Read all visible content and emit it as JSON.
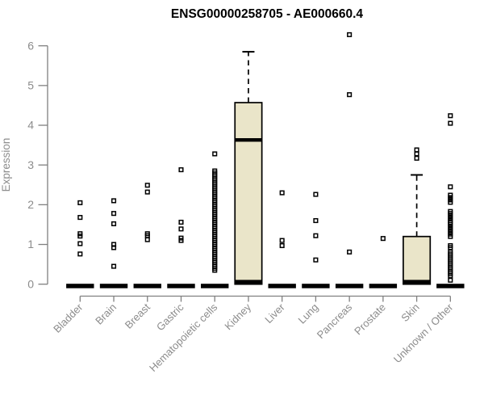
{
  "chart_data": {
    "type": "boxplot",
    "title": "ENSG00000258705 - AE000660.4",
    "ylabel": "Expression",
    "ylim": [
      0,
      6
    ],
    "yticks": [
      "0",
      "1",
      "2",
      "3",
      "4",
      "5",
      "6"
    ],
    "grid": false,
    "legend": false,
    "categories": [
      "Bladder",
      "Brain",
      "Breast",
      "Gastric",
      "Hematopoietic cells",
      "Kidney",
      "Liver",
      "Lung",
      "Pancreas",
      "Prostate",
      "Skin",
      "Unknown / Other"
    ],
    "boxes": [
      {
        "category": "Bladder",
        "q1": 0,
        "median": 0,
        "q3": 0,
        "whisker_low": 0,
        "whisker_high": 0,
        "outliers": [
          2.05,
          1.68,
          1.27,
          1.21,
          1.02,
          0.76
        ]
      },
      {
        "category": "Brain",
        "q1": 0,
        "median": 0,
        "q3": 0,
        "whisker_low": 0,
        "whisker_high": 0,
        "outliers": [
          2.1,
          1.78,
          1.52,
          1.0,
          0.92,
          0.45
        ]
      },
      {
        "category": "Breast",
        "q1": 0,
        "median": 0,
        "q3": 0,
        "whisker_low": 0,
        "whisker_high": 0,
        "outliers": [
          2.49,
          2.32,
          1.27,
          1.22,
          1.12
        ]
      },
      {
        "category": "Gastric",
        "q1": 0,
        "median": 0,
        "q3": 0,
        "whisker_low": 0,
        "whisker_high": 0,
        "outliers": [
          2.88,
          1.56,
          1.39,
          1.16,
          1.1
        ]
      },
      {
        "category": "Hematopoietic cells",
        "q1": 0,
        "median": 0,
        "q3": 0,
        "whisker_low": 0,
        "whisker_high": 0,
        "outliers": [
          3.28,
          2.85,
          2.8,
          2.75,
          2.7,
          2.65,
          2.6,
          2.55,
          2.5,
          2.45,
          2.4,
          2.35,
          2.3,
          2.25,
          2.2,
          2.15,
          2.1,
          2.05,
          2.0,
          1.95,
          1.9,
          1.85,
          1.8,
          1.75,
          1.7,
          1.65,
          1.6,
          1.55,
          1.5,
          1.45,
          1.4,
          1.35,
          1.3,
          1.25,
          1.2,
          1.15,
          1.1,
          1.05,
          1.0,
          0.95,
          0.9,
          0.85,
          0.8,
          0.75,
          0.7,
          0.65,
          0.6,
          0.55,
          0.5,
          0.45,
          0.4,
          0.35
        ]
      },
      {
        "category": "Kidney",
        "q1": 0,
        "median": 3.63,
        "q3": 4.57,
        "whisker_low": 0,
        "whisker_high": 5.85,
        "outliers": []
      },
      {
        "category": "Liver",
        "q1": 0,
        "median": 0,
        "q3": 0,
        "whisker_low": 0,
        "whisker_high": 0,
        "outliers": [
          2.3,
          1.1,
          0.97
        ]
      },
      {
        "category": "Lung",
        "q1": 0,
        "median": 0,
        "q3": 0,
        "whisker_low": 0,
        "whisker_high": 0,
        "outliers": [
          2.26,
          1.6,
          1.22,
          0.61
        ]
      },
      {
        "category": "Pancreas",
        "q1": 0,
        "median": 0,
        "q3": 0,
        "whisker_low": 0,
        "whisker_high": 0,
        "outliers": [
          6.28,
          4.77,
          0.81
        ]
      },
      {
        "category": "Prostate",
        "q1": 0,
        "median": 0,
        "q3": 0,
        "whisker_low": 0,
        "whisker_high": 0,
        "outliers": [
          1.15
        ]
      },
      {
        "category": "Skin",
        "q1": 0,
        "median": 0,
        "q3": 1.2,
        "whisker_low": 0,
        "whisker_high": 2.75,
        "outliers": [
          3.38,
          3.28,
          3.17
        ]
      },
      {
        "category": "Unknown / Other",
        "q1": 0,
        "median": 0,
        "q3": 0,
        "whisker_low": 0,
        "whisker_high": 0,
        "outliers": [
          4.24,
          4.05,
          2.45,
          2.24,
          2.18,
          2.12,
          2.06,
          1.83,
          1.78,
          1.72,
          1.66,
          1.6,
          1.55,
          1.5,
          1.44,
          1.38,
          1.32,
          1.26,
          1.2,
          0.97,
          0.92,
          0.81,
          0.76,
          0.71,
          0.66,
          0.61,
          0.56,
          0.51,
          0.46,
          0.41,
          0.36,
          0.31,
          0.26,
          0.21,
          0.1
        ]
      }
    ],
    "colors": {
      "box_fill": "#EAE5C9",
      "box_stroke": "#000000",
      "median": "#000000",
      "point": "#000000",
      "axis": "#808080",
      "tick_label": "#8c8c8c",
      "title": "#000000",
      "background": "#ffffff"
    }
  }
}
